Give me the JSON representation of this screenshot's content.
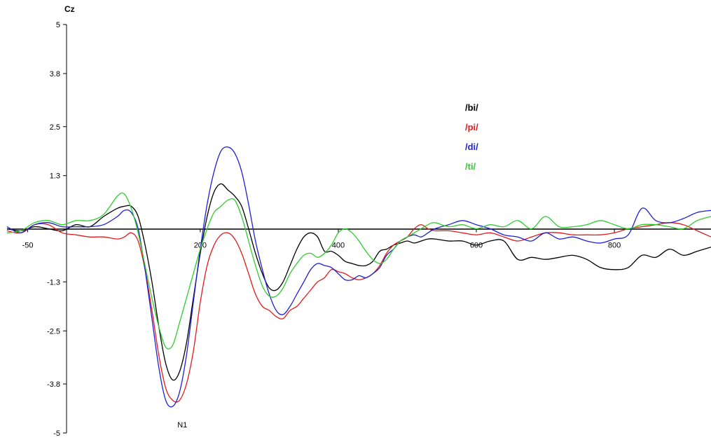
{
  "chart_data": {
    "type": "line",
    "title": "Cz",
    "xlabel": "",
    "ylabel": "",
    "xlim": [
      -80,
      940
    ],
    "ylim": [
      -5,
      5
    ],
    "x_ticks": [
      -50,
      200,
      400,
      600,
      800
    ],
    "y_ticks": [
      5,
      3.8,
      2.5,
      1.3,
      -1.3,
      -2.5,
      -3.8,
      -5
    ],
    "grid": false,
    "legend_position": "right",
    "annotations": [
      {
        "text": "N1",
        "x": 174,
        "y": -4.55
      }
    ],
    "series": [
      {
        "name": "/bi/",
        "color": "#000000",
        "x": [
          -80,
          -60,
          -40,
          -20,
          0,
          20,
          40,
          60,
          80,
          90,
          100,
          110,
          120,
          130,
          140,
          150,
          160,
          170,
          180,
          190,
          200,
          210,
          220,
          230,
          240,
          250,
          260,
          270,
          280,
          290,
          300,
          310,
          320,
          330,
          340,
          350,
          360,
          370,
          380,
          390,
          400,
          410,
          420,
          430,
          440,
          450,
          460,
          470,
          480,
          490,
          500,
          510,
          520,
          530,
          540,
          560,
          580,
          600,
          620,
          640,
          660,
          680,
          700,
          720,
          740,
          760,
          780,
          800,
          820,
          840,
          860,
          880,
          900,
          920,
          940
        ],
        "y": [
          0,
          -0.05,
          0.05,
          0,
          -0.05,
          0.1,
          0.05,
          0.3,
          0.5,
          0.55,
          0.55,
          0.3,
          -0.4,
          -1.3,
          -2.4,
          -3.3,
          -3.7,
          -3.5,
          -2.8,
          -1.7,
          -0.6,
          0.3,
          0.9,
          1.1,
          0.95,
          0.8,
          0.55,
          0.0,
          -0.6,
          -1.1,
          -1.45,
          -1.5,
          -1.3,
          -0.9,
          -0.5,
          -0.2,
          -0.1,
          -0.2,
          -0.55,
          -0.55,
          -0.65,
          -0.8,
          -0.85,
          -0.9,
          -0.9,
          -0.8,
          -0.55,
          -0.5,
          -0.4,
          -0.35,
          -0.3,
          -0.35,
          -0.3,
          -0.25,
          -0.25,
          -0.3,
          -0.3,
          -0.4,
          -0.3,
          -0.3,
          -0.75,
          -0.7,
          -0.75,
          -0.7,
          -0.65,
          -0.75,
          -0.95,
          -1.0,
          -0.95,
          -0.65,
          -0.7,
          -0.5,
          -0.65,
          -0.55,
          -0.45
        ]
      },
      {
        "name": "/pi/",
        "color": "#e31a1c",
        "x": [
          -80,
          -60,
          -40,
          -20,
          0,
          20,
          40,
          60,
          80,
          90,
          100,
          110,
          120,
          130,
          140,
          150,
          160,
          170,
          180,
          190,
          200,
          210,
          220,
          230,
          240,
          250,
          260,
          270,
          280,
          290,
          300,
          310,
          320,
          330,
          340,
          350,
          360,
          370,
          380,
          390,
          400,
          410,
          420,
          430,
          440,
          450,
          460,
          470,
          480,
          490,
          500,
          510,
          520,
          530,
          540,
          560,
          580,
          600,
          620,
          640,
          660,
          680,
          700,
          720,
          740,
          760,
          780,
          800,
          820,
          840,
          860,
          880,
          900,
          920,
          940
        ],
        "y": [
          -0.05,
          -0.1,
          0.1,
          0.1,
          -0.1,
          -0.15,
          -0.2,
          -0.2,
          -0.25,
          -0.2,
          -0.1,
          -0.3,
          -1.0,
          -2.0,
          -3.1,
          -3.9,
          -4.2,
          -4.2,
          -3.8,
          -3.0,
          -1.8,
          -0.9,
          -0.4,
          -0.15,
          -0.1,
          -0.25,
          -0.6,
          -1.1,
          -1.6,
          -1.9,
          -2.0,
          -2.15,
          -2.2,
          -2.0,
          -1.9,
          -1.7,
          -1.5,
          -1.3,
          -1.2,
          -1.0,
          -1.05,
          -1.1,
          -1.2,
          -1.25,
          -1.2,
          -1.1,
          -0.9,
          -0.6,
          -0.4,
          -0.3,
          -0.2,
          0.0,
          0.1,
          0.0,
          -0.05,
          -0.05,
          -0.1,
          -0.15,
          -0.1,
          -0.2,
          -0.3,
          -0.2,
          -0.1,
          -0.1,
          -0.15,
          -0.15,
          -0.15,
          -0.1,
          0.0,
          0.05,
          0.1,
          0.15,
          0.1,
          -0.05,
          -0.2
        ]
      },
      {
        "name": "/di/",
        "color": "#1f1fd6",
        "x": [
          -80,
          -60,
          -40,
          -20,
          0,
          20,
          40,
          60,
          80,
          90,
          100,
          110,
          120,
          130,
          140,
          150,
          160,
          170,
          180,
          190,
          200,
          210,
          220,
          230,
          240,
          250,
          260,
          270,
          280,
          290,
          300,
          310,
          320,
          330,
          340,
          350,
          360,
          370,
          380,
          390,
          400,
          410,
          420,
          430,
          440,
          450,
          460,
          470,
          480,
          490,
          500,
          510,
          520,
          530,
          540,
          560,
          580,
          600,
          620,
          640,
          660,
          680,
          700,
          720,
          740,
          760,
          780,
          800,
          820,
          840,
          860,
          880,
          900,
          920,
          940
        ],
        "y": [
          0.05,
          -0.1,
          0.1,
          0.15,
          0.05,
          0.05,
          0.05,
          0.1,
          0.3,
          0.45,
          0.4,
          0.0,
          -1.0,
          -2.2,
          -3.4,
          -4.2,
          -4.35,
          -4.0,
          -3.1,
          -1.8,
          -0.5,
          0.6,
          1.4,
          1.9,
          2.0,
          1.85,
          1.4,
          0.6,
          -0.3,
          -1.0,
          -1.6,
          -2.0,
          -2.1,
          -1.9,
          -1.6,
          -1.3,
          -1.0,
          -0.85,
          -0.9,
          -0.95,
          -1.1,
          -1.25,
          -1.25,
          -1.15,
          -1.2,
          -1.1,
          -0.95,
          -0.65,
          -0.5,
          -0.3,
          -0.2,
          -0.15,
          -0.2,
          -0.1,
          0.0,
          0.1,
          0.2,
          0.1,
          0.0,
          -0.15,
          -0.2,
          -0.3,
          -0.1,
          -0.25,
          -0.2,
          -0.3,
          -0.35,
          -0.25,
          -0.15,
          0.5,
          0.2,
          0.15,
          0.25,
          0.4,
          0.45
        ]
      },
      {
        "name": "/ti/",
        "color": "#2ecc2e",
        "x": [
          -80,
          -60,
          -40,
          -20,
          0,
          20,
          40,
          60,
          80,
          90,
          100,
          110,
          120,
          130,
          140,
          150,
          160,
          170,
          180,
          190,
          200,
          210,
          220,
          230,
          240,
          250,
          260,
          270,
          280,
          290,
          300,
          310,
          320,
          330,
          340,
          350,
          360,
          370,
          380,
          390,
          400,
          410,
          420,
          430,
          440,
          450,
          460,
          470,
          480,
          490,
          500,
          510,
          520,
          530,
          540,
          560,
          580,
          600,
          620,
          640,
          660,
          680,
          700,
          720,
          740,
          760,
          780,
          800,
          820,
          840,
          860,
          880,
          900,
          920,
          940
        ],
        "y": [
          -0.1,
          -0.05,
          0.15,
          0.2,
          0.1,
          0.2,
          0.2,
          0.35,
          0.8,
          0.85,
          0.5,
          -0.1,
          -0.9,
          -1.7,
          -2.4,
          -2.9,
          -2.85,
          -2.3,
          -1.7,
          -1.1,
          -0.5,
          0.0,
          0.4,
          0.55,
          0.7,
          0.7,
          0.3,
          -0.3,
          -0.9,
          -1.4,
          -1.65,
          -1.65,
          -1.45,
          -1.1,
          -0.85,
          -0.65,
          -0.6,
          -0.7,
          -0.6,
          -0.4,
          -0.1,
          0.0,
          -0.1,
          -0.3,
          -0.55,
          -0.75,
          -0.85,
          -0.75,
          -0.5,
          -0.3,
          -0.2,
          -0.1,
          0.0,
          0.1,
          0.15,
          0.05,
          0.1,
          0.0,
          0.1,
          0.05,
          0.2,
          0.0,
          0.3,
          0.05,
          0.05,
          0.1,
          0.2,
          0.1,
          0.0,
          0.1,
          0.1,
          0.05,
          0.0,
          0.2,
          0.3
        ]
      }
    ]
  }
}
